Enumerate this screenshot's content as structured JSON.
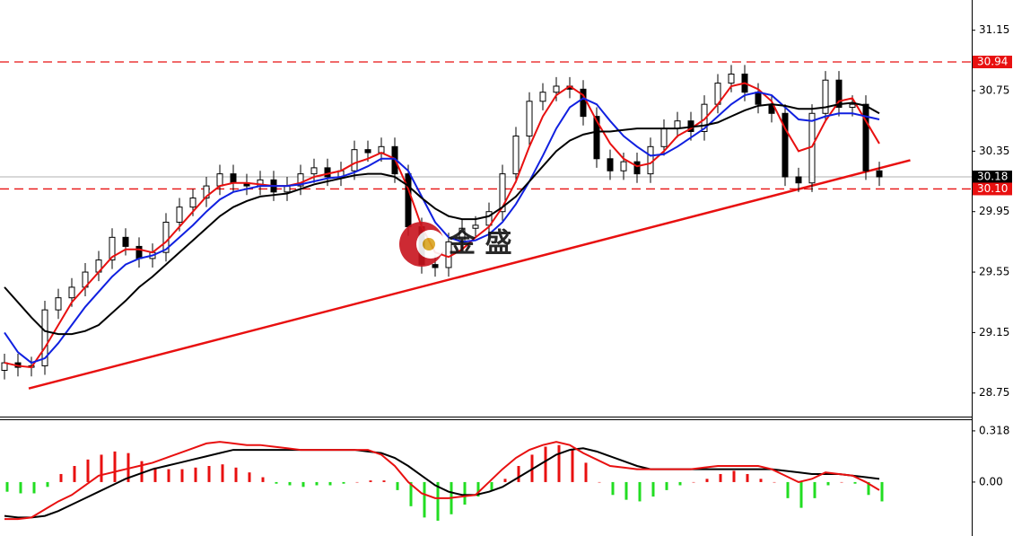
{
  "chart_data": {
    "type": "candlestick",
    "open": [
      28.9,
      28.95,
      28.92,
      28.93,
      29.3,
      29.38,
      29.45,
      29.55,
      29.63,
      29.78,
      29.72,
      29.64,
      29.68,
      29.88,
      29.98,
      30.04,
      30.12,
      30.2,
      30.14,
      30.12,
      30.16,
      30.08,
      30.12,
      30.2,
      30.24,
      30.18,
      30.22,
      30.36,
      30.34,
      30.38,
      30.2,
      29.85,
      29.6,
      29.58,
      29.75,
      29.84,
      29.86,
      29.95,
      30.2,
      30.45,
      30.68,
      30.74,
      30.78,
      30.76,
      30.58,
      30.3,
      30.22,
      30.28,
      30.2,
      30.38,
      30.5,
      30.55,
      30.48,
      30.66,
      30.8,
      30.86,
      30.74,
      30.66,
      30.6,
      30.18,
      30.14,
      30.6,
      30.82,
      30.64,
      30.66,
      30.22
    ],
    "high": [
      29.01,
      29.01,
      28.99,
      29.36,
      29.44,
      29.51,
      29.61,
      29.69,
      29.84,
      29.84,
      29.78,
      29.74,
      29.94,
      30.04,
      30.1,
      30.18,
      30.26,
      30.26,
      30.2,
      30.22,
      30.22,
      30.18,
      30.26,
      30.3,
      30.3,
      30.28,
      30.42,
      30.42,
      30.44,
      30.44,
      30.26,
      29.91,
      29.66,
      29.81,
      29.9,
      29.92,
      30.01,
      30.26,
      30.51,
      30.74,
      30.8,
      30.84,
      30.84,
      30.82,
      30.64,
      30.36,
      30.34,
      30.34,
      30.44,
      30.56,
      30.61,
      30.61,
      30.72,
      30.86,
      30.92,
      30.92,
      30.8,
      30.72,
      30.66,
      30.24,
      30.66,
      30.88,
      30.88,
      30.72,
      30.72,
      30.28
    ],
    "low": [
      28.84,
      28.86,
      28.86,
      28.87,
      29.24,
      29.32,
      29.39,
      29.49,
      29.57,
      29.66,
      29.58,
      29.58,
      29.62,
      29.82,
      29.92,
      29.98,
      30.06,
      30.08,
      30.06,
      30.06,
      30.02,
      30.02,
      30.06,
      30.14,
      30.12,
      30.12,
      30.16,
      30.28,
      30.28,
      30.14,
      29.79,
      29.54,
      29.52,
      29.52,
      29.69,
      29.78,
      29.8,
      29.89,
      30.14,
      30.39,
      30.62,
      30.68,
      30.7,
      30.52,
      30.24,
      30.16,
      30.16,
      30.14,
      30.14,
      30.32,
      30.44,
      30.42,
      30.42,
      30.6,
      30.74,
      30.68,
      30.6,
      30.54,
      30.12,
      30.08,
      30.08,
      30.54,
      30.58,
      30.58,
      30.16,
      30.12
    ],
    "close": [
      28.95,
      28.92,
      28.93,
      29.3,
      29.38,
      29.45,
      29.55,
      29.63,
      29.78,
      29.72,
      29.64,
      29.68,
      29.88,
      29.98,
      30.04,
      30.12,
      30.2,
      30.14,
      30.12,
      30.16,
      30.08,
      30.12,
      30.2,
      30.24,
      30.18,
      30.22,
      30.36,
      30.34,
      30.38,
      30.2,
      29.85,
      29.6,
      29.58,
      29.75,
      29.84,
      29.86,
      29.95,
      30.2,
      30.45,
      30.68,
      30.74,
      30.78,
      30.76,
      30.58,
      30.3,
      30.22,
      30.28,
      30.2,
      30.38,
      30.5,
      30.55,
      30.48,
      30.66,
      30.8,
      30.86,
      30.74,
      30.66,
      30.6,
      30.18,
      30.14,
      30.6,
      30.82,
      30.64,
      30.66,
      30.22,
      30.18
    ],
    "up_color": "#ffffff",
    "down_color": "#000000",
    "overlays": [
      {
        "color": "#e81010",
        "values": [
          28.95,
          28.93,
          28.92,
          29.05,
          29.2,
          29.35,
          29.45,
          29.55,
          29.65,
          29.7,
          29.7,
          29.68,
          29.75,
          29.85,
          29.95,
          30.05,
          30.12,
          30.14,
          30.14,
          30.13,
          30.12,
          30.12,
          30.14,
          30.18,
          30.2,
          30.22,
          30.27,
          30.3,
          30.34,
          30.3,
          30.1,
          29.85,
          29.68,
          29.65,
          29.7,
          29.78,
          29.85,
          29.98,
          30.15,
          30.38,
          30.58,
          30.72,
          30.78,
          30.72,
          30.55,
          30.4,
          30.3,
          30.25,
          30.27,
          30.35,
          30.45,
          30.5,
          30.56,
          30.66,
          30.78,
          30.8,
          30.76,
          30.68,
          30.5,
          30.35,
          30.38,
          30.55,
          30.68,
          30.7,
          30.55,
          30.4
        ]
      },
      {
        "color": "#1020e0",
        "values": [
          29.15,
          29.02,
          28.95,
          28.98,
          29.08,
          29.2,
          29.32,
          29.42,
          29.52,
          29.6,
          29.64,
          29.66,
          29.7,
          29.78,
          29.86,
          29.95,
          30.03,
          30.08,
          30.1,
          30.12,
          30.12,
          30.12,
          30.13,
          30.15,
          30.17,
          30.18,
          30.21,
          30.25,
          30.3,
          30.3,
          30.22,
          30.05,
          29.88,
          29.78,
          29.75,
          29.76,
          29.8,
          29.88,
          30.0,
          30.15,
          30.32,
          30.5,
          30.64,
          30.7,
          30.66,
          30.55,
          30.45,
          30.38,
          30.32,
          30.33,
          30.38,
          30.44,
          30.5,
          30.58,
          30.66,
          30.72,
          30.74,
          30.72,
          30.64,
          30.56,
          30.55,
          30.58,
          30.6,
          30.6,
          30.58,
          30.56
        ]
      },
      {
        "color": "#000000",
        "values": [
          29.45,
          29.35,
          29.25,
          29.16,
          29.14,
          29.14,
          29.16,
          29.2,
          29.28,
          29.36,
          29.45,
          29.52,
          29.6,
          29.68,
          29.76,
          29.84,
          29.92,
          29.98,
          30.02,
          30.05,
          30.06,
          30.07,
          30.1,
          30.13,
          30.15,
          30.17,
          30.19,
          30.2,
          30.2,
          30.18,
          30.12,
          30.04,
          29.97,
          29.92,
          29.9,
          29.9,
          29.92,
          29.98,
          30.05,
          30.15,
          30.25,
          30.35,
          30.42,
          30.46,
          30.48,
          30.48,
          30.49,
          30.5,
          30.5,
          30.5,
          30.5,
          30.51,
          30.52,
          30.54,
          30.58,
          30.62,
          30.65,
          30.66,
          30.65,
          30.63,
          30.63,
          30.64,
          30.66,
          30.67,
          30.65,
          30.6
        ]
      }
    ],
    "trendline": {
      "x": [
        1.8,
        67.3
      ],
      "y": [
        28.78,
        30.29
      ],
      "color": "#e81010"
    },
    "levels": [
      30.94,
      {
        "value": 30.1,
        "label": "30.10"
      }
    ],
    "level_color": "#e81010",
    "last_price": 30.18,
    "ylim": [
      28.6,
      31.35
    ],
    "yticks": [
      28.75,
      29.15,
      29.55,
      29.95,
      30.35,
      30.75,
      31.15
    ],
    "watermark": "金 盛",
    "macd": {
      "histogram": [
        -0.06,
        -0.07,
        -0.07,
        -0.03,
        0.05,
        0.1,
        0.14,
        0.17,
        0.19,
        0.18,
        0.13,
        0.09,
        0.08,
        0.08,
        0.09,
        0.1,
        0.11,
        0.09,
        0.06,
        0.03,
        -0.01,
        -0.02,
        -0.03,
        -0.02,
        -0.02,
        -0.01,
        0.0,
        0.01,
        0.01,
        -0.05,
        -0.15,
        -0.22,
        -0.24,
        -0.2,
        -0.14,
        -0.09,
        -0.05,
        0.02,
        0.1,
        0.17,
        0.22,
        0.23,
        0.2,
        0.12,
        0.0,
        -0.08,
        -0.11,
        -0.12,
        -0.09,
        -0.05,
        -0.02,
        0.0,
        0.02,
        0.05,
        0.07,
        0.05,
        0.02,
        0.0,
        -0.1,
        -0.16,
        -0.1,
        -0.02,
        0.0,
        -0.01,
        -0.08,
        -0.12
      ],
      "positive_color": "#e81010",
      "negative_color": "#22dd22",
      "lines": [
        {
          "color": "#000000",
          "values": [
            -0.21,
            -0.22,
            -0.22,
            -0.21,
            -0.18,
            -0.14,
            -0.1,
            -0.06,
            -0.02,
            0.02,
            0.05,
            0.08,
            0.1,
            0.12,
            0.14,
            0.16,
            0.18,
            0.2,
            0.2,
            0.2,
            0.2,
            0.2,
            0.2,
            0.2,
            0.2,
            0.2,
            0.2,
            0.19,
            0.18,
            0.15,
            0.1,
            0.04,
            -0.02,
            -0.06,
            -0.08,
            -0.08,
            -0.06,
            -0.03,
            0.02,
            0.07,
            0.12,
            0.17,
            0.2,
            0.21,
            0.19,
            0.16,
            0.13,
            0.1,
            0.08,
            0.08,
            0.08,
            0.08,
            0.08,
            0.08,
            0.08,
            0.08,
            0.08,
            0.08,
            0.07,
            0.06,
            0.05,
            0.05,
            0.05,
            0.04,
            0.03,
            0.02
          ]
        },
        {
          "color": "#e81010",
          "values": [
            -0.23,
            -0.23,
            -0.22,
            -0.17,
            -0.12,
            -0.08,
            -0.02,
            0.04,
            0.06,
            0.08,
            0.1,
            0.12,
            0.15,
            0.18,
            0.21,
            0.24,
            0.25,
            0.24,
            0.23,
            0.23,
            0.22,
            0.21,
            0.2,
            0.2,
            0.2,
            0.2,
            0.2,
            0.2,
            0.17,
            0.1,
            0.0,
            -0.07,
            -0.1,
            -0.1,
            -0.09,
            -0.08,
            0.0,
            0.08,
            0.15,
            0.2,
            0.23,
            0.25,
            0.23,
            0.18,
            0.14,
            0.1,
            0.09,
            0.08,
            0.08,
            0.08,
            0.08,
            0.08,
            0.09,
            0.1,
            0.1,
            0.1,
            0.1,
            0.08,
            0.04,
            0.0,
            0.02,
            0.06,
            0.05,
            0.04,
            0.0,
            -0.05
          ]
        }
      ],
      "ylim": [
        -0.335,
        0.39
      ],
      "yticks": [
        {
          "value": 0,
          "label": "0.00"
        },
        0.318
      ]
    }
  }
}
